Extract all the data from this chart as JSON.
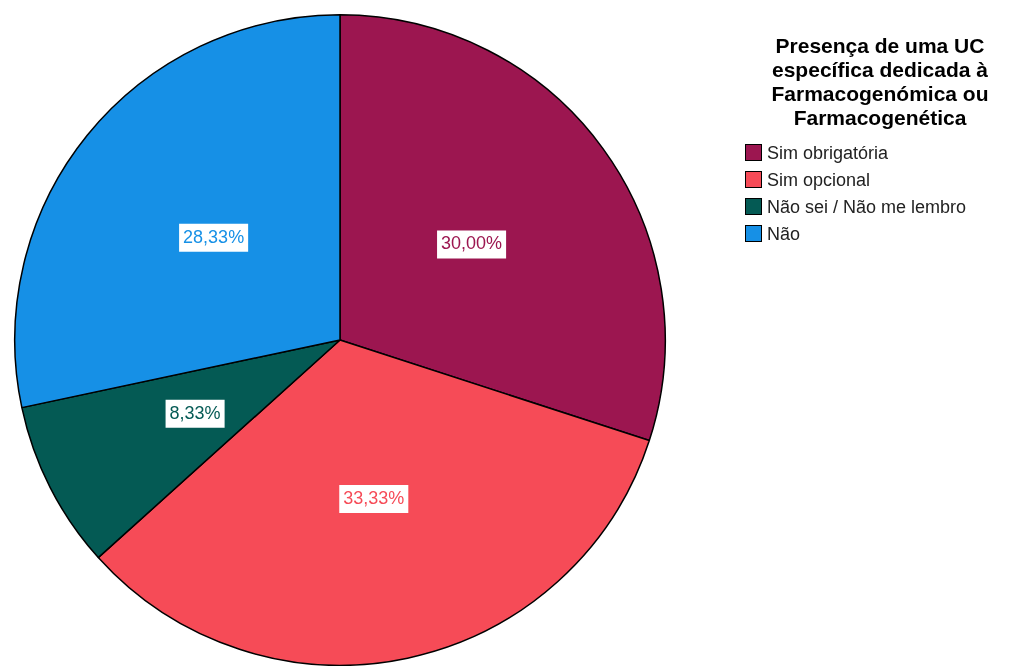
{
  "chart_data": {
    "type": "pie",
    "legend_title": "Presença de uma UC específica dedicada à Farmacogenómica ou Farmacogenética",
    "categories": [
      "Sim obrigatória",
      "Sim opcional",
      "Não sei / Não me lembro",
      "Não"
    ],
    "values": [
      30,
      33.33,
      8.33,
      28.33
    ],
    "colors": [
      "#9c1650",
      "#f64b57",
      "#045a54",
      "#1690e6"
    ],
    "value_labels": [
      "30,00%",
      "33,33%",
      "8,33%",
      "28,33%"
    ],
    "legend": "right"
  }
}
